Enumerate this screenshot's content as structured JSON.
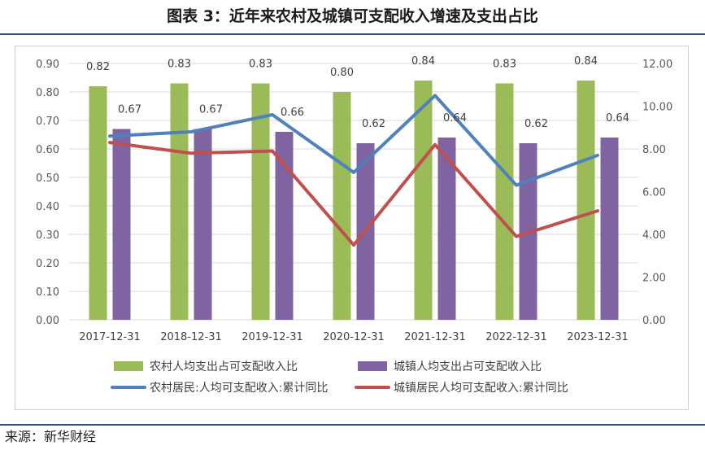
{
  "title": "图表 3：近年来农村及城镇可支配收入增速及支出占比",
  "source": "来源：新华财经",
  "colors": {
    "rural_bar": "#9bbb59",
    "urban_bar": "#8064a2",
    "rural_line": "#4f81bd",
    "urban_line": "#c0504d"
  },
  "chart_data": {
    "type": "bar",
    "categories": [
      "2017-12-31",
      "2018-12-31",
      "2019-12-31",
      "2020-12-31",
      "2021-12-31",
      "2022-12-31",
      "2023-12-31"
    ],
    "y_left": {
      "range": [
        0,
        0.9
      ],
      "ticks": [
        "0.00",
        "0.10",
        "0.20",
        "0.30",
        "0.40",
        "0.50",
        "0.60",
        "0.70",
        "0.80",
        "0.90"
      ]
    },
    "y_right": {
      "range": [
        0,
        12
      ],
      "ticks": [
        "0.00",
        "2.00",
        "4.00",
        "6.00",
        "8.00",
        "10.00",
        "12.00"
      ]
    },
    "grid": true,
    "legend_position": "bottom",
    "series": [
      {
        "name": "农村人均支出占可支配收入比",
        "type": "bar",
        "axis": "left",
        "values": [
          0.82,
          0.83,
          0.83,
          0.8,
          0.84,
          0.83,
          0.84
        ],
        "labels": [
          "0.82",
          "0.83",
          "0.83",
          "0.80",
          "0.84",
          "0.83",
          "0.84"
        ]
      },
      {
        "name": "城镇人均支出占可支配收入比",
        "type": "bar",
        "axis": "left",
        "values": [
          0.67,
          0.67,
          0.66,
          0.62,
          0.64,
          0.62,
          0.64
        ],
        "labels": [
          "0.67",
          "0.67",
          "0.66",
          "0.62",
          "0.64",
          "0.62",
          "0.64"
        ]
      },
      {
        "name": "农村居民:人均可支配收入:累计同比",
        "type": "line",
        "axis": "right",
        "values": [
          8.6,
          8.8,
          9.6,
          6.9,
          10.5,
          6.3,
          7.7
        ]
      },
      {
        "name": "城镇居民人均可支配收入:累计同比",
        "type": "line",
        "axis": "right",
        "values": [
          8.3,
          7.8,
          7.9,
          3.5,
          8.2,
          3.9,
          5.1
        ]
      }
    ]
  }
}
